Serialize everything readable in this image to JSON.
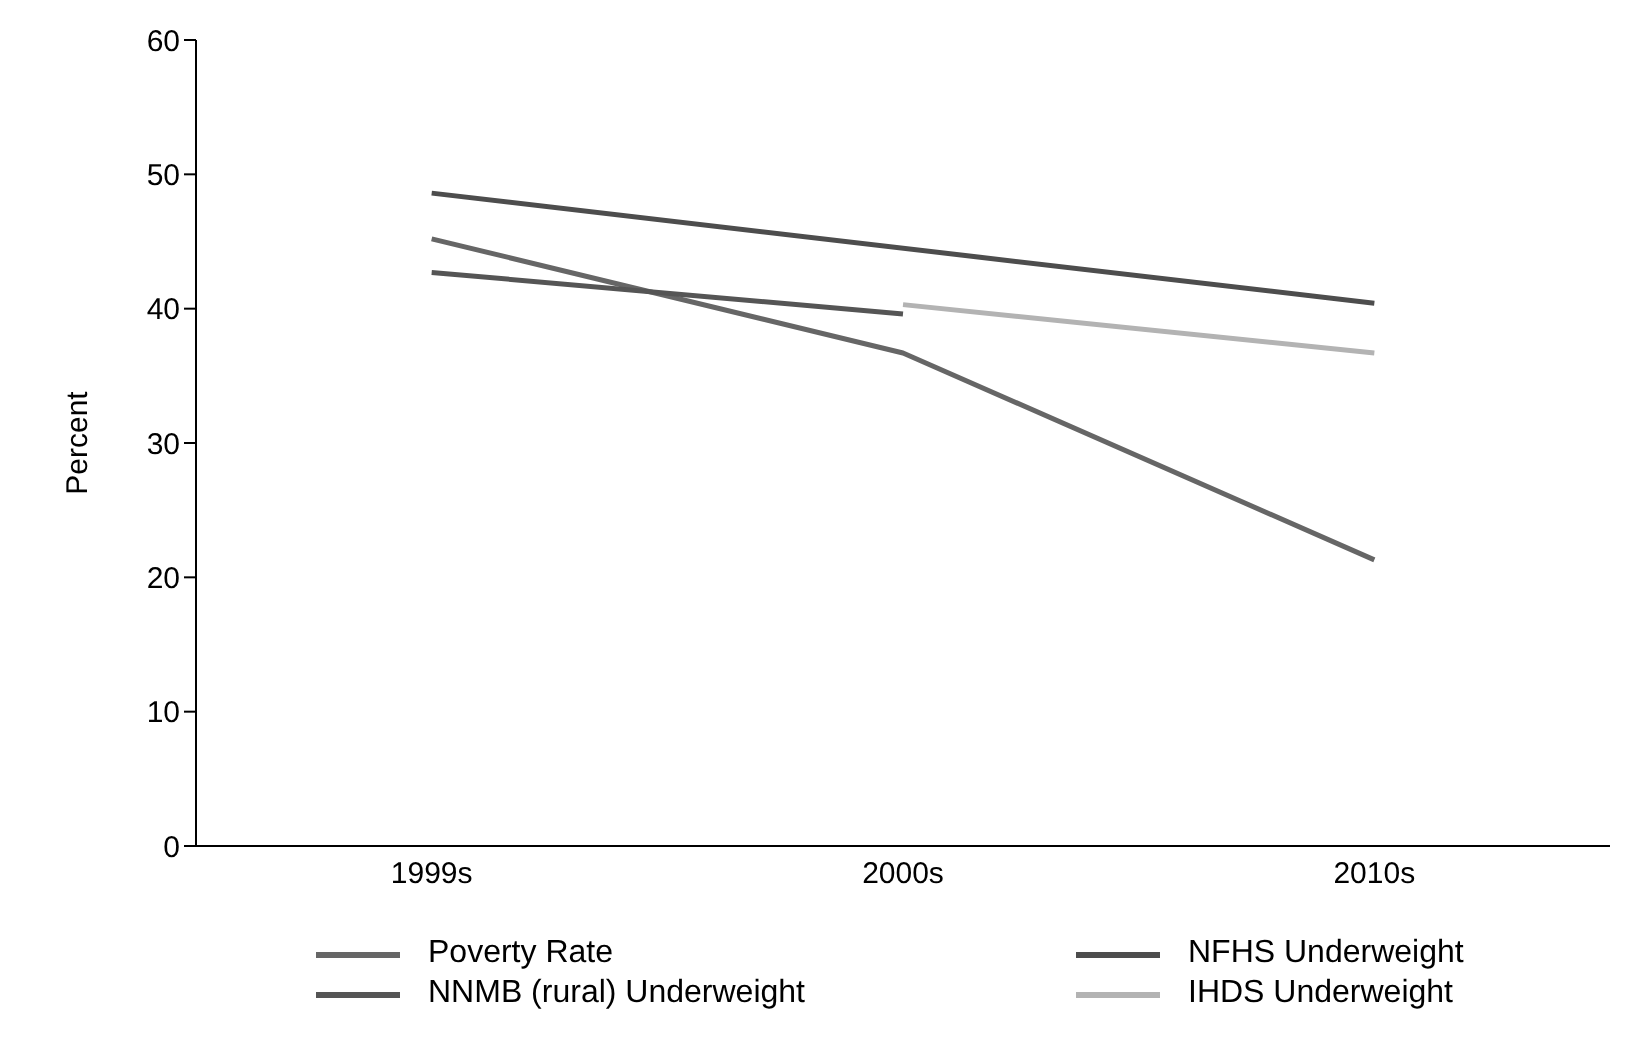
{
  "chart_data": {
    "type": "line",
    "ylabel": "Percent",
    "categories": [
      "1999s",
      "2000s",
      "2010s"
    ],
    "series": [
      {
        "name": "Poverty Rate",
        "color": "#666666",
        "values": [
          45.2,
          36.7,
          21.3
        ]
      },
      {
        "name": "NNMB (rural) Underweight",
        "color": "#555555",
        "values": [
          42.7,
          39.6,
          null
        ]
      },
      {
        "name": "NFHS Underweight",
        "color": "#4d4d4d",
        "values": [
          48.6,
          null,
          40.4
        ]
      },
      {
        "name": "IHDS Underweight",
        "color": "#b3b3b3",
        "values": [
          null,
          40.3,
          36.7
        ]
      }
    ],
    "ylim": [
      0,
      60
    ],
    "yticks": [
      0,
      10,
      20,
      30,
      40,
      50,
      60
    ],
    "grid": false,
    "legend": "bottom",
    "marker": "none",
    "line_style": "solid"
  }
}
